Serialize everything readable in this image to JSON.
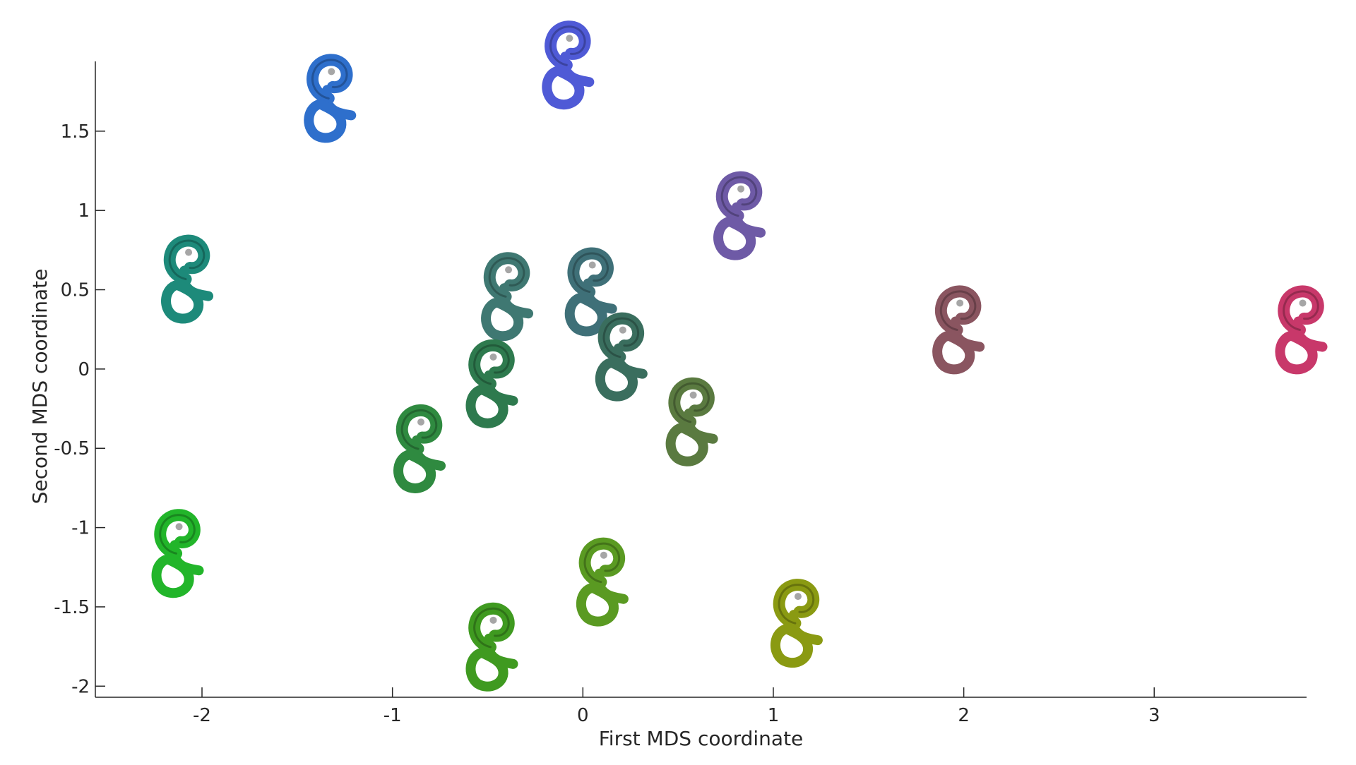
{
  "chart_data": {
    "type": "scatter",
    "title": "",
    "xlabel": "First MDS coordinate",
    "ylabel": "Second MDS coordinate",
    "xlim": [
      -2.56,
      3.8
    ],
    "ylim": [
      -2.07,
      1.94
    ],
    "xticks": [
      -2,
      -1,
      0,
      1,
      2,
      3
    ],
    "yticks": [
      -2,
      -1.5,
      -1,
      -0.5,
      0,
      0.5,
      1,
      1.5
    ],
    "xtick_labels": [
      "-2",
      "-1",
      "0",
      "1",
      "2",
      "3"
    ],
    "ytick_labels": [
      "-2",
      "-1.5",
      "-1",
      "-0.5",
      "0",
      "0.5",
      "1",
      "1.5"
    ],
    "grid": false,
    "marker": "cochlea-shape",
    "points": [
      {
        "x": -1.35,
        "y": 1.68,
        "color": "#2e6fcc"
      },
      {
        "x": -0.1,
        "y": 1.89,
        "color": "#4f5ad6"
      },
      {
        "x": 0.8,
        "y": 0.94,
        "color": "#6e5aa6"
      },
      {
        "x": -2.1,
        "y": 0.54,
        "color": "#1d8a7a"
      },
      {
        "x": 0.02,
        "y": 0.46,
        "color": "#3f7078"
      },
      {
        "x": -0.42,
        "y": 0.43,
        "color": "#3f7872"
      },
      {
        "x": 0.18,
        "y": 0.05,
        "color": "#3a6e5e"
      },
      {
        "x": 1.95,
        "y": 0.22,
        "color": "#8a5560"
      },
      {
        "x": 3.75,
        "y": 0.22,
        "color": "#c8386a"
      },
      {
        "x": -0.5,
        "y": -0.12,
        "color": "#2e7a4e"
      },
      {
        "x": -0.88,
        "y": -0.53,
        "color": "#2f8a40"
      },
      {
        "x": 0.55,
        "y": -0.36,
        "color": "#5a7a40"
      },
      {
        "x": -2.15,
        "y": -1.19,
        "color": "#22b52a"
      },
      {
        "x": 0.08,
        "y": -1.37,
        "color": "#5a9a22"
      },
      {
        "x": -0.5,
        "y": -1.78,
        "color": "#3f9a20"
      },
      {
        "x": 1.1,
        "y": -1.63,
        "color": "#8a9a12"
      }
    ]
  }
}
